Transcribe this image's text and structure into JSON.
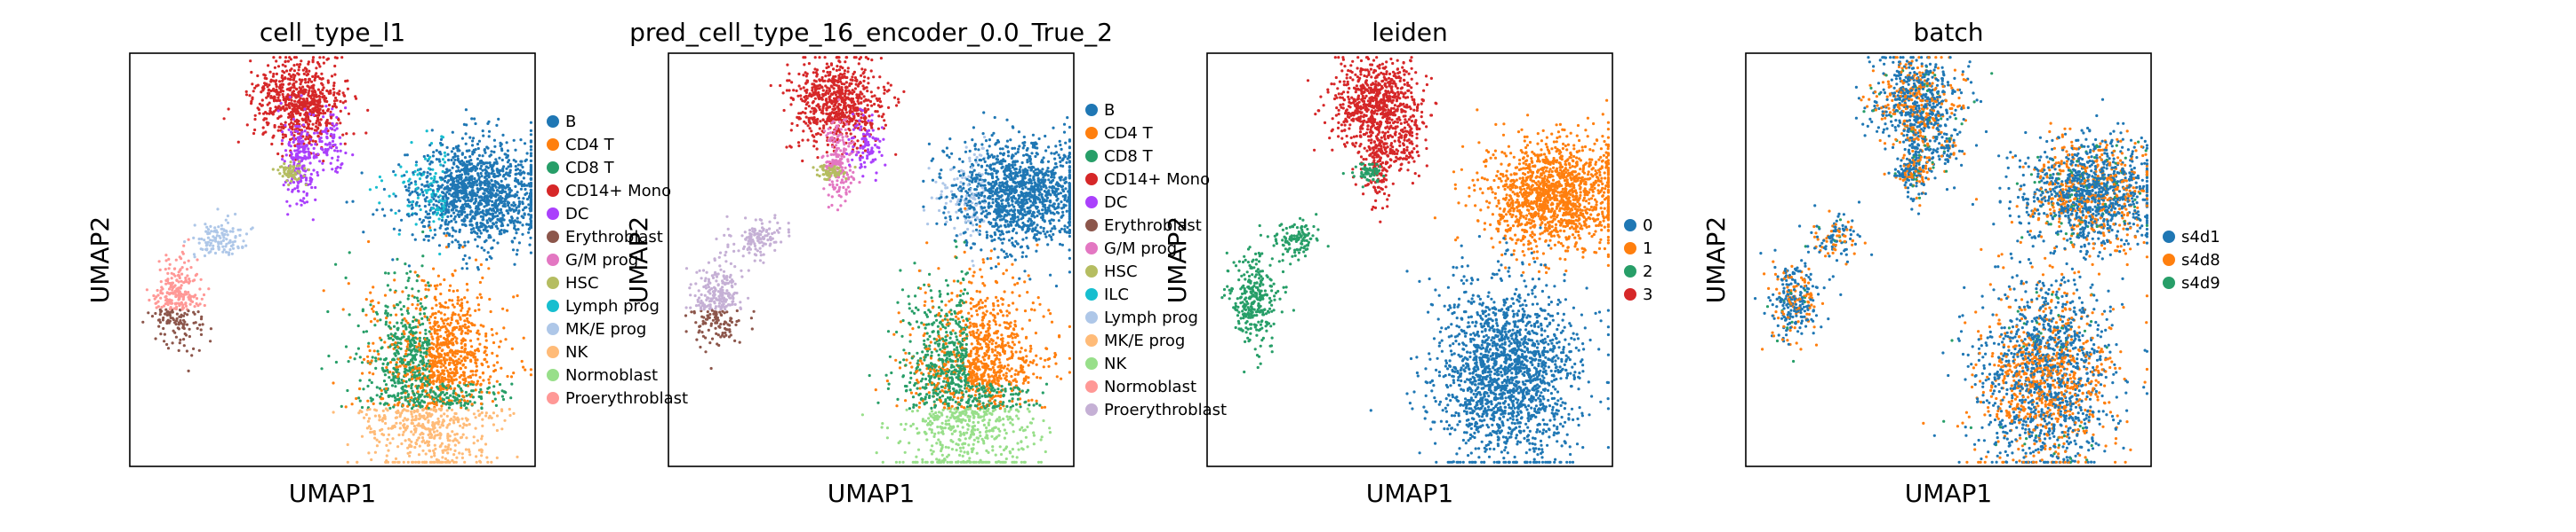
{
  "colors": {
    "tab20_blue": "#1f77b4",
    "tab20_orange": "#ff7f0e",
    "tab20_green": "#279e68",
    "tab20_red": "#d62728",
    "tab20_purple": "#aa40fc",
    "tab20_brown": "#8c564b",
    "tab20_pink": "#e377c2",
    "tab20_olive": "#b5bd61",
    "tab20_cyan": "#17becf",
    "tab20_lightblue": "#aec7e8",
    "tab20_lightorange": "#ffbb78",
    "tab20_lightgreen": "#98df8a",
    "tab20_lightred": "#ff9896",
    "tab20_lavender": "#c5b0d5"
  },
  "chart_data": [
    {
      "type": "scatter",
      "title": "cell_type_l1",
      "xlabel": "UMAP1",
      "ylabel": "UMAP2",
      "grid": false,
      "legend": "right",
      "categories": [
        {
          "name": "B",
          "color": "#1f77b4"
        },
        {
          "name": "CD4 T",
          "color": "#ff7f0e"
        },
        {
          "name": "CD8 T",
          "color": "#279e68"
        },
        {
          "name": "CD14+ Mono",
          "color": "#d62728"
        },
        {
          "name": "DC",
          "color": "#aa40fc"
        },
        {
          "name": "Erythroblast",
          "color": "#8c564b"
        },
        {
          "name": "G/M prog",
          "color": "#e377c2"
        },
        {
          "name": "HSC",
          "color": "#b5bd61"
        },
        {
          "name": "Lymph prog",
          "color": "#17becf"
        },
        {
          "name": "MK/E prog",
          "color": "#aec7e8"
        },
        {
          "name": "NK",
          "color": "#ffbb78"
        },
        {
          "name": "Normoblast",
          "color": "#98df8a"
        },
        {
          "name": "Proerythroblast",
          "color": "#ff9896"
        }
      ]
    },
    {
      "type": "scatter",
      "title": "pred_cell_type_16_encoder_0.0_True_2",
      "xlabel": "UMAP1",
      "ylabel": "UMAP2",
      "grid": false,
      "legend": "right",
      "categories": [
        {
          "name": "B",
          "color": "#1f77b4"
        },
        {
          "name": "CD4 T",
          "color": "#ff7f0e"
        },
        {
          "name": "CD8 T",
          "color": "#279e68"
        },
        {
          "name": "CD14+ Mono",
          "color": "#d62728"
        },
        {
          "name": "DC",
          "color": "#aa40fc"
        },
        {
          "name": "Erythroblast",
          "color": "#8c564b"
        },
        {
          "name": "G/M prog",
          "color": "#e377c2"
        },
        {
          "name": "HSC",
          "color": "#b5bd61"
        },
        {
          "name": "ILC",
          "color": "#17becf"
        },
        {
          "name": "Lymph prog",
          "color": "#aec7e8"
        },
        {
          "name": "MK/E prog",
          "color": "#ffbb78"
        },
        {
          "name": "NK",
          "color": "#98df8a"
        },
        {
          "name": "Normoblast",
          "color": "#ff9896"
        },
        {
          "name": "Proerythroblast",
          "color": "#c5b0d5"
        }
      ]
    },
    {
      "type": "scatter",
      "title": "leiden",
      "xlabel": "UMAP1",
      "ylabel": "UMAP2",
      "grid": false,
      "legend": "right",
      "categories": [
        {
          "name": "0",
          "color": "#1f77b4"
        },
        {
          "name": "1",
          "color": "#ff7f0e"
        },
        {
          "name": "2",
          "color": "#279e68"
        },
        {
          "name": "3",
          "color": "#d62728"
        }
      ]
    },
    {
      "type": "scatter",
      "title": "batch",
      "xlabel": "UMAP1",
      "ylabel": "UMAP2",
      "grid": false,
      "legend": "right",
      "categories": [
        {
          "name": "s4d1",
          "color": "#1f77b4"
        },
        {
          "name": "s4d8",
          "color": "#ff7f0e"
        },
        {
          "name": "s4d9",
          "color": "#279e68"
        }
      ]
    }
  ]
}
